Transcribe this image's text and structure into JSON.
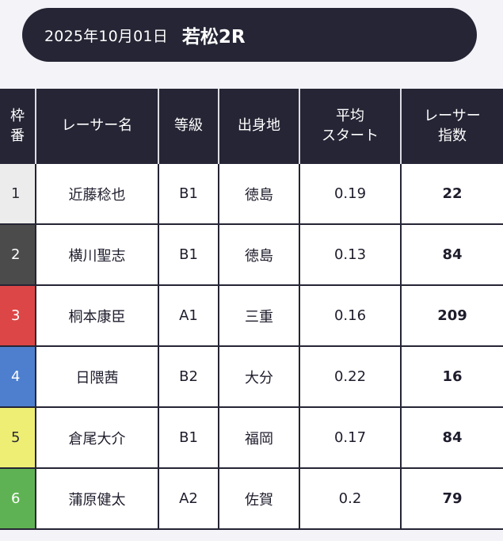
{
  "header": {
    "date": "2025年10月01日",
    "race": "若松2R"
  },
  "table": {
    "headers": {
      "waku": [
        "枠",
        "番"
      ],
      "racer_name": [
        "レーサー名"
      ],
      "grade": [
        "等級"
      ],
      "hometown": [
        "出身地"
      ],
      "avg_start": [
        "平均",
        "スタート"
      ],
      "racer_index": [
        "レーサー",
        "指数"
      ]
    },
    "rows": [
      {
        "waku": "1",
        "name": "近藤稔也",
        "grade": "B1",
        "hometown": "徳島",
        "avg_start": "0.19",
        "racer_index": "22",
        "waku_color": "#ececec",
        "waku_text_color": "#2a2a36"
      },
      {
        "waku": "2",
        "name": "横川聖志",
        "grade": "B1",
        "hometown": "徳島",
        "avg_start": "0.13",
        "racer_index": "84",
        "waku_color": "#4b4b4b",
        "waku_text_color": "#ffffff"
      },
      {
        "waku": "3",
        "name": "桐本康臣",
        "grade": "A1",
        "hometown": "三重",
        "avg_start": "0.16",
        "racer_index": "209",
        "waku_color": "#dd4646",
        "waku_text_color": "#ffffff"
      },
      {
        "waku": "4",
        "name": "日隈茜",
        "grade": "B2",
        "hometown": "大分",
        "avg_start": "0.22",
        "racer_index": "16",
        "waku_color": "#4d7fce",
        "waku_text_color": "#ffffff"
      },
      {
        "waku": "5",
        "name": "倉尾大介",
        "grade": "B1",
        "hometown": "福岡",
        "avg_start": "0.17",
        "racer_index": "84",
        "waku_color": "#eeee74",
        "waku_text_color": "#2a2a36"
      },
      {
        "waku": "6",
        "name": "蒲原健太",
        "grade": "A2",
        "hometown": "佐賀",
        "avg_start": "0.2",
        "racer_index": "79",
        "waku_color": "#5fb253",
        "waku_text_color": "#ffffff"
      }
    ]
  }
}
